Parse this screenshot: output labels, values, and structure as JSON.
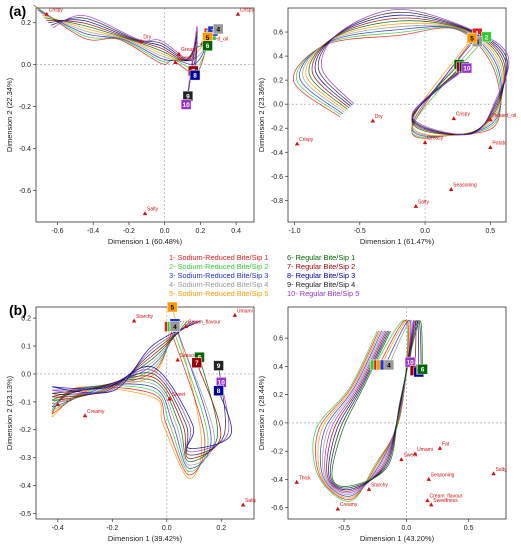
{
  "panel_labels": [
    "(a)",
    "(b)"
  ],
  "legend": [
    {
      "text": "1- Sodium-Reduced Bite/Sip 1",
      "color": "#e31a1c"
    },
    {
      "text": "2- Sodium-Reduced Bite/Sip 2",
      "color": "#33cc33"
    },
    {
      "text": "3- Sodium-Reduced Bite/Sip 3",
      "color": "#2233cc"
    },
    {
      "text": "4- Sodium-Reduced Bite/Sip 4",
      "color": "#999999"
    },
    {
      "text": "5- Sodium-Reduced Bite/Sip 5",
      "color": "#ff9900"
    },
    {
      "text": "6- Regular Bite/Sip 1",
      "color": "#006600"
    },
    {
      "text": "7- Regular Bite/Sip 2",
      "color": "#990000"
    },
    {
      "text": "8- Regular Bite/Sip 3",
      "color": "#000099"
    },
    {
      "text": "9- Regular Bite/Sip 4",
      "color": "#222222"
    },
    {
      "text": "10- Regular Bite/Sip 5",
      "color": "#9933cc"
    }
  ],
  "chart_data": [
    {
      "type": "scatter",
      "panel": "(a)",
      "position": "left",
      "xlabel": "Dimension 1 (60.48%)",
      "ylabel": "Dimension 2 (22.34%)",
      "xlim": [
        -0.72,
        0.5
      ],
      "ylim": [
        -0.75,
        0.27
      ],
      "xticks": [
        -0.6,
        -0.4,
        -0.2,
        0.0,
        0.2,
        0.4
      ],
      "yticks": [
        0.2,
        0.0,
        -0.2,
        -0.4,
        -0.6
      ],
      "attributes": [
        {
          "name": "Crispy",
          "x": -0.66,
          "y": 0.24
        },
        {
          "name": "Crispy",
          "x": 0.41,
          "y": 0.24
        },
        {
          "name": "Dry",
          "x": -0.13,
          "y": 0.11
        },
        {
          "name": "Heated_oil",
          "x": 0.21,
          "y": 0.1
        },
        {
          "name": "Greasy",
          "x": 0.08,
          "y": 0.05
        },
        {
          "name": "Sweet",
          "x": 0.06,
          "y": 0.01
        },
        {
          "name": "Salty",
          "x": -0.11,
          "y": -0.71
        }
      ],
      "points": [
        {
          "label": "1",
          "x": 0.25,
          "y": 0.15
        },
        {
          "label": "2",
          "x": 0.26,
          "y": 0.14
        },
        {
          "label": "3",
          "x": 0.27,
          "y": 0.16
        },
        {
          "label": "4",
          "x": 0.3,
          "y": 0.17
        },
        {
          "label": "5",
          "x": 0.24,
          "y": 0.13
        },
        {
          "label": "6",
          "x": 0.24,
          "y": 0.09
        },
        {
          "label": "7",
          "x": 0.16,
          "y": -0.03
        },
        {
          "label": "8",
          "x": 0.17,
          "y": -0.05
        },
        {
          "label": "9",
          "x": 0.13,
          "y": -0.15
        },
        {
          "label": "10",
          "x": 0.12,
          "y": -0.19
        }
      ]
    },
    {
      "type": "scatter",
      "panel": "(a)",
      "position": "right",
      "xlabel": "Dimension 1 (61.47%)",
      "ylabel": "Dimension 2 (23.36%)",
      "xlim": [
        -1.05,
        0.62
      ],
      "ylim": [
        -0.98,
        0.8
      ],
      "xticks": [
        -1.0,
        -0.5,
        0.0,
        0.5
      ],
      "yticks": [
        0.6,
        0.4,
        0.2,
        0.0,
        -0.2,
        -0.4,
        -0.6,
        -0.8
      ],
      "attributes": [
        {
          "name": "Crispy",
          "x": -0.98,
          "y": -0.33
        },
        {
          "name": "Dry",
          "x": -0.4,
          "y": -0.14
        },
        {
          "name": "Crispy",
          "x": 0.22,
          "y": -0.12
        },
        {
          "name": "Heated_oil",
          "x": 0.5,
          "y": -0.13
        },
        {
          "name": "Greasy",
          "x": 0.0,
          "y": -0.32
        },
        {
          "name": "Potato",
          "x": 0.5,
          "y": -0.36
        },
        {
          "name": "Seasoning",
          "x": 0.2,
          "y": -0.71
        },
        {
          "name": "Salty",
          "x": -0.07,
          "y": -0.85
        }
      ],
      "points": [
        {
          "label": "1",
          "x": 0.4,
          "y": 0.59
        },
        {
          "label": "2",
          "x": 0.47,
          "y": 0.56
        },
        {
          "label": "3",
          "x": 0.38,
          "y": 0.54
        },
        {
          "label": "4",
          "x": 0.4,
          "y": 0.52
        },
        {
          "label": "5",
          "x": 0.36,
          "y": 0.55
        },
        {
          "label": "6",
          "x": 0.26,
          "y": 0.33
        },
        {
          "label": "7",
          "x": 0.28,
          "y": 0.31
        },
        {
          "label": "8",
          "x": 0.3,
          "y": 0.3
        },
        {
          "label": "9",
          "x": 0.3,
          "y": 0.31
        },
        {
          "label": "10",
          "x": 0.32,
          "y": 0.3
        }
      ]
    },
    {
      "type": "scatter",
      "panel": "(b)",
      "position": "left",
      "xlabel": "Dimension 1 (39.42%)",
      "ylabel": "Dimension 2 (23.13%)",
      "xlim": [
        -0.48,
        0.32
      ],
      "ylim": [
        -0.52,
        0.24
      ],
      "xticks": [
        -0.4,
        -0.2,
        0.0,
        0.2
      ],
      "yticks": [
        0.2,
        0.1,
        0.0,
        -0.1,
        -0.2,
        -0.3,
        -0.4,
        -0.5
      ],
      "attributes": [
        {
          "name": "Umami",
          "x": 0.25,
          "y": 0.21
        },
        {
          "name": "Starchy",
          "x": -0.12,
          "y": 0.19
        },
        {
          "name": "Cream_flavour",
          "x": 0.07,
          "y": 0.17
        },
        {
          "name": "Seasoning",
          "x": 0.04,
          "y": 0.05
        },
        {
          "name": "Bitter",
          "x": -0.4,
          "y": -0.11
        },
        {
          "name": "Creamy",
          "x": -0.3,
          "y": -0.15
        },
        {
          "name": "Sweet",
          "x": 0.01,
          "y": -0.09
        },
        {
          "name": "Salty",
          "x": 0.28,
          "y": -0.47
        }
      ],
      "points": [
        {
          "label": "5",
          "x": 0.02,
          "y": 0.24
        },
        {
          "label": "1",
          "x": 0.01,
          "y": 0.17
        },
        {
          "label": "2",
          "x": 0.02,
          "y": 0.17
        },
        {
          "label": "3",
          "x": 0.03,
          "y": 0.18
        },
        {
          "label": "4",
          "x": 0.03,
          "y": 0.17
        },
        {
          "label": "6",
          "x": 0.12,
          "y": 0.06
        },
        {
          "label": "7",
          "x": 0.11,
          "y": 0.04
        },
        {
          "label": "9",
          "x": 0.19,
          "y": 0.03
        },
        {
          "label": "10",
          "x": 0.2,
          "y": -0.03
        },
        {
          "label": "8",
          "x": 0.19,
          "y": -0.06
        }
      ]
    },
    {
      "type": "scatter",
      "panel": "(b)",
      "position": "right",
      "xlabel": "Dimension 1 (43.20%)",
      "ylabel": "Dimension 2 (28.44%)",
      "xlim": [
        -0.95,
        0.8
      ],
      "ylim": [
        -0.68,
        0.82
      ],
      "xticks": [
        -0.5,
        0.0,
        0.5
      ],
      "yticks": [
        0.6,
        0.4,
        0.2,
        0.0,
        -0.2,
        -0.4,
        -0.6
      ],
      "attributes": [
        {
          "name": "Thick",
          "x": -0.88,
          "y": -0.42
        },
        {
          "name": "Creamy",
          "x": -0.55,
          "y": -0.61
        },
        {
          "name": "Starchy",
          "x": -0.3,
          "y": -0.47
        },
        {
          "name": "Sweet",
          "x": -0.04,
          "y": -0.26
        },
        {
          "name": "Umami",
          "x": 0.07,
          "y": -0.22
        },
        {
          "name": "Fat",
          "x": 0.27,
          "y": -0.18
        },
        {
          "name": "Seasoning",
          "x": 0.18,
          "y": -0.4
        },
        {
          "name": "Cream_flavour",
          "x": 0.17,
          "y": -0.55
        },
        {
          "name": "Sweetness",
          "x": 0.2,
          "y": -0.58
        },
        {
          "name": "Salty",
          "x": 0.7,
          "y": -0.36
        }
      ],
      "points": [
        {
          "label": "2",
          "x": -0.25,
          "y": 0.41
        },
        {
          "label": "1",
          "x": -0.22,
          "y": 0.41
        },
        {
          "label": "5",
          "x": -0.2,
          "y": 0.41
        },
        {
          "label": "3",
          "x": -0.17,
          "y": 0.41
        },
        {
          "label": "4",
          "x": -0.14,
          "y": 0.41
        },
        {
          "label": "10",
          "x": 0.03,
          "y": 0.43
        },
        {
          "label": "7",
          "x": 0.07,
          "y": 0.37
        },
        {
          "label": "8",
          "x": 0.1,
          "y": 0.36
        },
        {
          "label": "9",
          "x": 0.12,
          "y": 0.38
        },
        {
          "label": "6",
          "x": 0.13,
          "y": 0.38
        }
      ]
    }
  ]
}
